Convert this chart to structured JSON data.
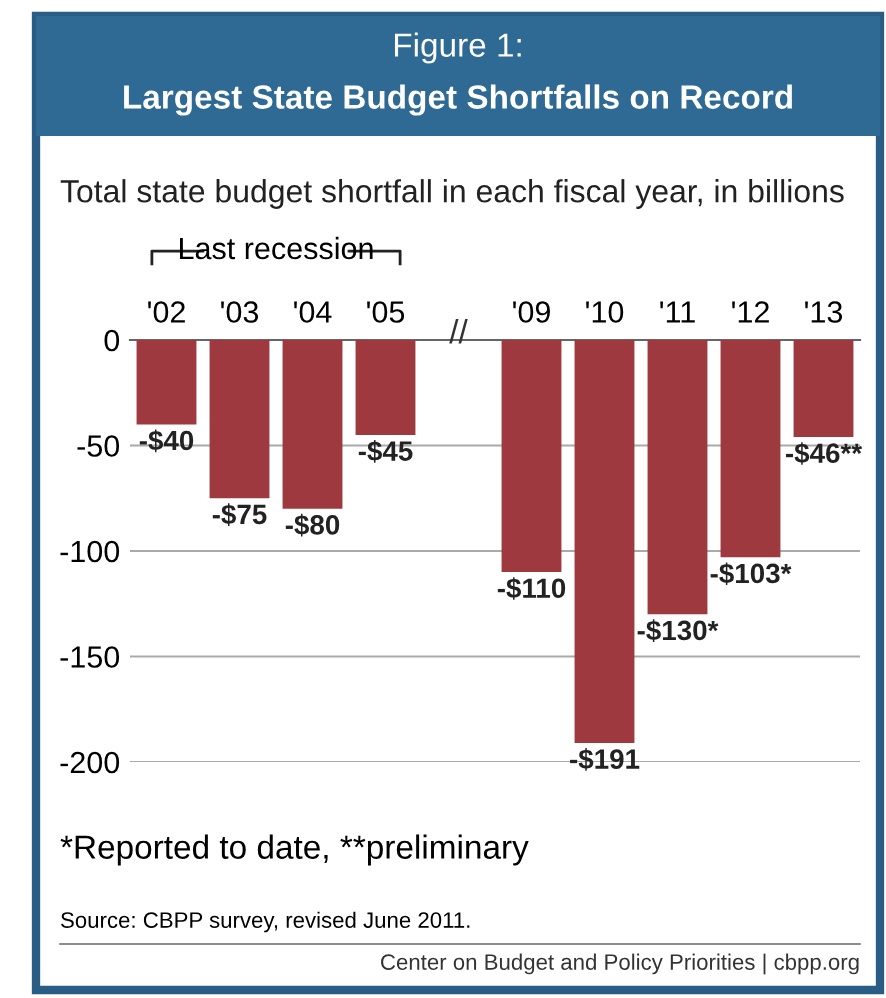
{
  "chart_data": {
    "type": "bar",
    "title": "Figure 1:",
    "subtitle": "Largest State Budget Shortfalls on Record",
    "ylabel": "Total state budget shortfall in each fiscal year, in billions",
    "categories": [
      "'02",
      "'03",
      "'04",
      "'05",
      null,
      "'09",
      "'10",
      "'11",
      "'12",
      "'13"
    ],
    "values": [
      -40,
      -75,
      -80,
      -45,
      null,
      -110,
      -191,
      -130,
      -103,
      -46
    ],
    "value_labels": [
      "-$40",
      "-$75",
      "-$80",
      "-$45",
      null,
      "-$110",
      "-$191",
      "-$130*",
      "-$103*",
      "-$46**"
    ],
    "color": "#9e3a3f",
    "ylim": [
      -200,
      0
    ],
    "yticks": [
      0,
      -50,
      -100,
      -150,
      -200
    ],
    "grid": "y",
    "annotations": [
      "Last recession",
      "//",
      "*Reported to date, **preliminary",
      "Source: CBPP survey, revised June 2011.",
      "Center on Budget and Policy Priorities | cbpp.org"
    ]
  }
}
